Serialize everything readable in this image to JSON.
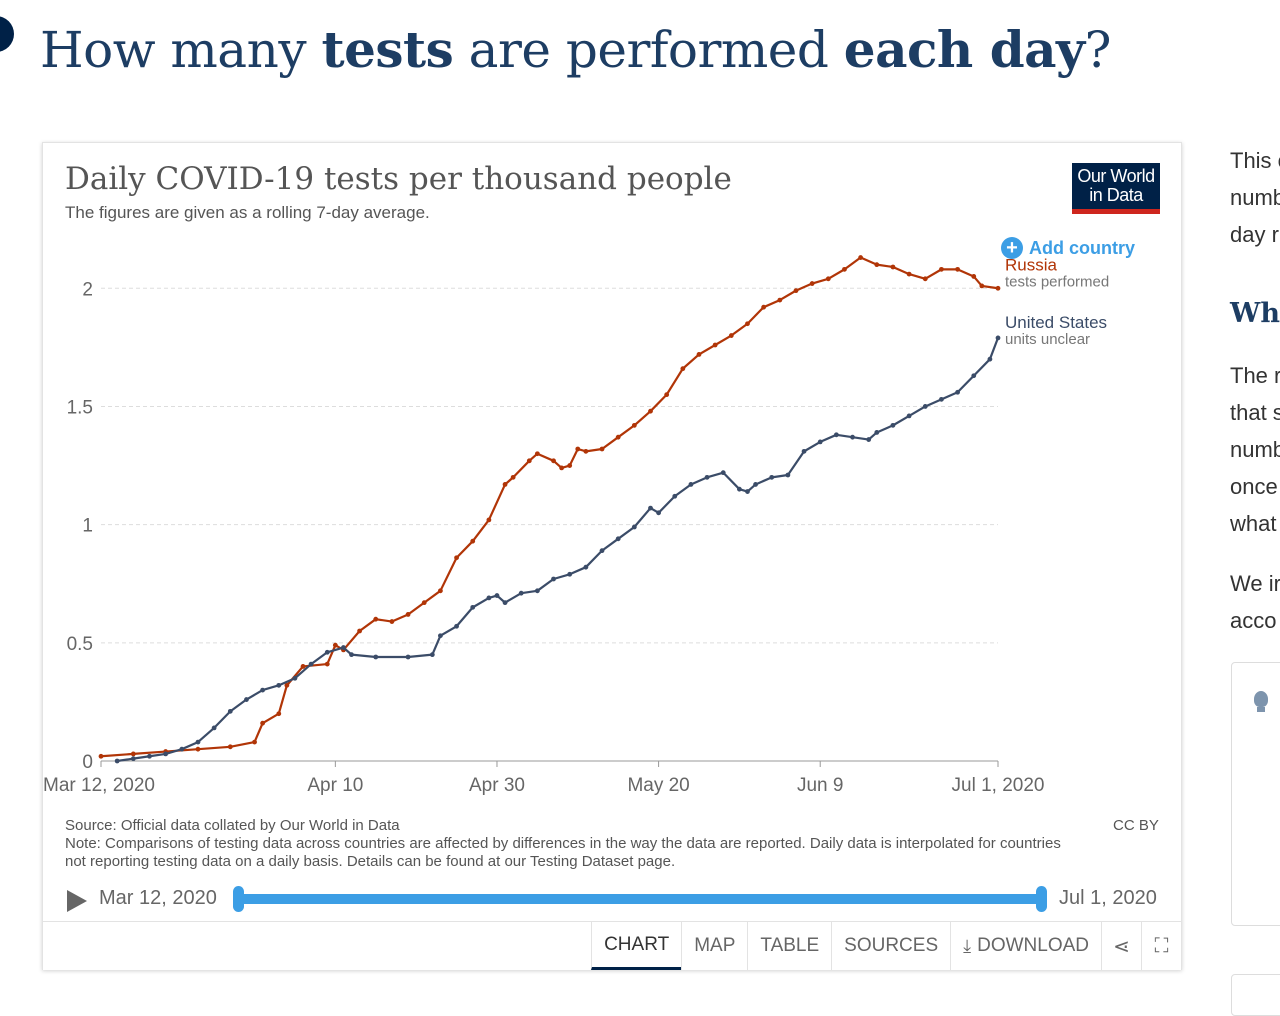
{
  "page": {
    "title_parts": [
      {
        "text": "How many ",
        "bold": false
      },
      {
        "text": "tests",
        "bold": true
      },
      {
        "text": " are performed ",
        "bold": false
      },
      {
        "text": "each day",
        "bold": true
      },
      {
        "text": "?",
        "bold": false
      }
    ]
  },
  "logo": {
    "line1": "Our World",
    "line2": "in Data"
  },
  "controls": {
    "add_country": "Add country",
    "add_icon": "plus-circle-icon"
  },
  "chart_data": {
    "type": "line",
    "title": "Daily COVID-19 tests per thousand people",
    "subtitle": "The figures are given as a rolling 7-day average.",
    "xlabel": "",
    "ylabel": "",
    "x_range": [
      "2020-03-12",
      "2020-07-01"
    ],
    "x_ticks": [
      {
        "label": "Mar 12, 2020",
        "date": "2020-03-12"
      },
      {
        "label": "Apr 10",
        "date": "2020-04-10"
      },
      {
        "label": "Apr 30",
        "date": "2020-04-30"
      },
      {
        "label": "May 20",
        "date": "2020-05-20"
      },
      {
        "label": "Jun 9",
        "date": "2020-06-09"
      },
      {
        "label": "Jul 1, 2020",
        "date": "2020-07-01"
      }
    ],
    "ylim": [
      0,
      2.2
    ],
    "y_ticks": [
      {
        "label": "0",
        "value": 0
      },
      {
        "label": "0.5",
        "value": 0.5
      },
      {
        "label": "1",
        "value": 1
      },
      {
        "label": "1.5",
        "value": 1.5
      },
      {
        "label": "2",
        "value": 2
      }
    ],
    "grid": "horizontal",
    "legend": "right-end-labels",
    "series": [
      {
        "name": "Russia",
        "note": "tests performed",
        "color": "#b13507",
        "points": [
          [
            "2020-03-12",
            0.02
          ],
          [
            "2020-03-16",
            0.03
          ],
          [
            "2020-03-20",
            0.04
          ],
          [
            "2020-03-24",
            0.05
          ],
          [
            "2020-03-28",
            0.06
          ],
          [
            "2020-03-31",
            0.08
          ],
          [
            "2020-04-01",
            0.16
          ],
          [
            "2020-04-03",
            0.2
          ],
          [
            "2020-04-04",
            0.32
          ],
          [
            "2020-04-06",
            0.4
          ],
          [
            "2020-04-09",
            0.41
          ],
          [
            "2020-04-10",
            0.49
          ],
          [
            "2020-04-11",
            0.47
          ],
          [
            "2020-04-13",
            0.55
          ],
          [
            "2020-04-15",
            0.6
          ],
          [
            "2020-04-17",
            0.59
          ],
          [
            "2020-04-19",
            0.62
          ],
          [
            "2020-04-21",
            0.67
          ],
          [
            "2020-04-23",
            0.72
          ],
          [
            "2020-04-25",
            0.86
          ],
          [
            "2020-04-27",
            0.93
          ],
          [
            "2020-04-29",
            1.02
          ],
          [
            "2020-05-01",
            1.17
          ],
          [
            "2020-05-02",
            1.2
          ],
          [
            "2020-05-04",
            1.27
          ],
          [
            "2020-05-05",
            1.3
          ],
          [
            "2020-05-07",
            1.27
          ],
          [
            "2020-05-08",
            1.24
          ],
          [
            "2020-05-09",
            1.25
          ],
          [
            "2020-05-10",
            1.32
          ],
          [
            "2020-05-11",
            1.31
          ],
          [
            "2020-05-13",
            1.32
          ],
          [
            "2020-05-15",
            1.37
          ],
          [
            "2020-05-17",
            1.42
          ],
          [
            "2020-05-19",
            1.48
          ],
          [
            "2020-05-21",
            1.55
          ],
          [
            "2020-05-23",
            1.66
          ],
          [
            "2020-05-25",
            1.72
          ],
          [
            "2020-05-27",
            1.76
          ],
          [
            "2020-05-29",
            1.8
          ],
          [
            "2020-05-31",
            1.85
          ],
          [
            "2020-06-02",
            1.92
          ],
          [
            "2020-06-04",
            1.95
          ],
          [
            "2020-06-06",
            1.99
          ],
          [
            "2020-06-08",
            2.02
          ],
          [
            "2020-06-10",
            2.04
          ],
          [
            "2020-06-12",
            2.08
          ],
          [
            "2020-06-14",
            2.13
          ],
          [
            "2020-06-16",
            2.1
          ],
          [
            "2020-06-18",
            2.09
          ],
          [
            "2020-06-20",
            2.06
          ],
          [
            "2020-06-22",
            2.04
          ],
          [
            "2020-06-24",
            2.08
          ],
          [
            "2020-06-26",
            2.08
          ],
          [
            "2020-06-28",
            2.05
          ],
          [
            "2020-06-29",
            2.01
          ],
          [
            "2020-07-01",
            2.0
          ]
        ]
      },
      {
        "name": "United States",
        "note": "units unclear",
        "color": "#3b4c68",
        "points": [
          [
            "2020-03-14",
            0.0
          ],
          [
            "2020-03-16",
            0.01
          ],
          [
            "2020-03-18",
            0.02
          ],
          [
            "2020-03-20",
            0.03
          ],
          [
            "2020-03-22",
            0.05
          ],
          [
            "2020-03-24",
            0.08
          ],
          [
            "2020-03-26",
            0.14
          ],
          [
            "2020-03-28",
            0.21
          ],
          [
            "2020-03-30",
            0.26
          ],
          [
            "2020-04-01",
            0.3
          ],
          [
            "2020-04-03",
            0.32
          ],
          [
            "2020-04-05",
            0.35
          ],
          [
            "2020-04-07",
            0.41
          ],
          [
            "2020-04-09",
            0.46
          ],
          [
            "2020-04-11",
            0.48
          ],
          [
            "2020-04-12",
            0.45
          ],
          [
            "2020-04-15",
            0.44
          ],
          [
            "2020-04-19",
            0.44
          ],
          [
            "2020-04-22",
            0.45
          ],
          [
            "2020-04-23",
            0.53
          ],
          [
            "2020-04-25",
            0.57
          ],
          [
            "2020-04-27",
            0.65
          ],
          [
            "2020-04-29",
            0.69
          ],
          [
            "2020-04-30",
            0.7
          ],
          [
            "2020-05-01",
            0.67
          ],
          [
            "2020-05-03",
            0.71
          ],
          [
            "2020-05-05",
            0.72
          ],
          [
            "2020-05-07",
            0.77
          ],
          [
            "2020-05-09",
            0.79
          ],
          [
            "2020-05-11",
            0.82
          ],
          [
            "2020-05-13",
            0.89
          ],
          [
            "2020-05-15",
            0.94
          ],
          [
            "2020-05-17",
            0.99
          ],
          [
            "2020-05-19",
            1.07
          ],
          [
            "2020-05-20",
            1.05
          ],
          [
            "2020-05-22",
            1.12
          ],
          [
            "2020-05-24",
            1.17
          ],
          [
            "2020-05-26",
            1.2
          ],
          [
            "2020-05-28",
            1.22
          ],
          [
            "2020-05-30",
            1.15
          ],
          [
            "2020-05-31",
            1.14
          ],
          [
            "2020-06-01",
            1.17
          ],
          [
            "2020-06-03",
            1.2
          ],
          [
            "2020-06-05",
            1.21
          ],
          [
            "2020-06-07",
            1.31
          ],
          [
            "2020-06-09",
            1.35
          ],
          [
            "2020-06-11",
            1.38
          ],
          [
            "2020-06-13",
            1.37
          ],
          [
            "2020-06-15",
            1.36
          ],
          [
            "2020-06-16",
            1.39
          ],
          [
            "2020-06-18",
            1.42
          ],
          [
            "2020-06-20",
            1.46
          ],
          [
            "2020-06-22",
            1.5
          ],
          [
            "2020-06-24",
            1.53
          ],
          [
            "2020-06-26",
            1.56
          ],
          [
            "2020-06-28",
            1.63
          ],
          [
            "2020-06-30",
            1.7
          ],
          [
            "2020-07-01",
            1.79
          ]
        ]
      }
    ]
  },
  "footer": {
    "source": "Source: Official data collated by Our World in Data",
    "note": "Note: Comparisons of testing data across countries are affected by differences in the way the data are reported. Daily data is interpolated for countries not reporting testing data on a daily basis. Details can be found at our Testing Dataset page.",
    "license": "CC BY"
  },
  "timeline": {
    "start_label": "Mar 12, 2020",
    "end_label": "Jul 1, 2020",
    "play_icon": "play-icon"
  },
  "tabs": [
    {
      "label": "CHART",
      "active": true
    },
    {
      "label": "MAP",
      "active": false
    },
    {
      "label": "TABLE",
      "active": false
    },
    {
      "label": "SOURCES",
      "active": false
    },
    {
      "label": "DOWNLOAD",
      "active": false,
      "icon": "download-icon"
    }
  ],
  "icon_tabs": [
    "share-icon",
    "fullscreen-icon"
  ],
  "sidebar": {
    "lines_top": [
      "This c",
      "numb",
      "day r"
    ],
    "heading": "Wha",
    "lines_mid": [
      "The r",
      "that s",
      "numb",
      "once",
      "what"
    ],
    "lines_bottom": [
      "We ir",
      "acco"
    ],
    "box_icon": "lightbulb-icon"
  }
}
